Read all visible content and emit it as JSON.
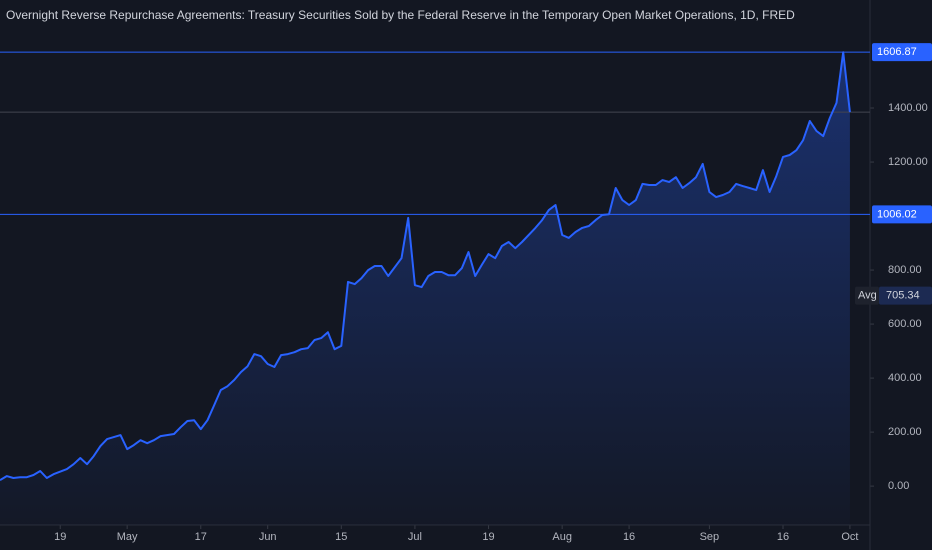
{
  "chart_data": {
    "type": "area",
    "title": "Overnight Reverse Repurchase Agreements: Treasury Securities Sold by the Federal Reserve in the Temporary Open Market Operations, 1D, FRED",
    "x": [
      0,
      1,
      2,
      3,
      4,
      5,
      6,
      7,
      8,
      10,
      11,
      12,
      13,
      14,
      15,
      16,
      18,
      19,
      20,
      21,
      22,
      23,
      24,
      26,
      27,
      28,
      29,
      30,
      31,
      32,
      33,
      34,
      35,
      36,
      37,
      38,
      39,
      40,
      41,
      42,
      43,
      44,
      45,
      46,
      47,
      48,
      49,
      50,
      51,
      52,
      53,
      54,
      55,
      56,
      57,
      58,
      60,
      61,
      62,
      63,
      64,
      65,
      66,
      67,
      68,
      69,
      70,
      71,
      72,
      73,
      74,
      75,
      76,
      77,
      78,
      80,
      81,
      82,
      83,
      84,
      85,
      86,
      87,
      88,
      89,
      90,
      91,
      92,
      93,
      94,
      95,
      96,
      97,
      98,
      99,
      100,
      101,
      102,
      103,
      104,
      105,
      106,
      107,
      108,
      109,
      110,
      111,
      112,
      113,
      114,
      115,
      116,
      117,
      118,
      119,
      120,
      121,
      122,
      123,
      124,
      125,
      126,
      127
    ],
    "values": [
      22,
      37,
      30,
      33,
      33,
      41,
      56,
      30,
      44,
      63,
      81,
      104,
      81,
      111,
      148,
      174,
      189,
      137,
      152,
      170,
      159,
      170,
      185,
      193,
      218,
      241,
      244,
      211,
      244,
      300,
      356,
      370,
      393,
      422,
      444,
      489,
      481,
      452,
      441,
      485,
      489,
      496,
      507,
      511,
      541,
      548,
      570,
      507,
      519,
      756,
      748,
      770,
      800,
      815,
      815,
      778,
      844,
      993,
      744,
      737,
      778,
      793,
      793,
      781,
      781,
      807,
      867,
      778,
      819,
      859,
      844,
      889,
      904,
      881,
      904,
      956,
      985,
      1022,
      1041,
      930,
      919,
      941,
      956,
      963,
      985,
      1004,
      1007,
      1104,
      1059,
      1041,
      1059,
      1119,
      1115,
      1115,
      1133,
      1126,
      1144,
      1104,
      1122,
      1144,
      1193,
      1089,
      1070,
      1078,
      1089,
      1119,
      1111,
      1104,
      1096,
      1170,
      1089,
      1148,
      1219,
      1226,
      1244,
      1281,
      1352,
      1315,
      1296,
      1363,
      1419,
      1606.87,
      1385
    ],
    "color": "#2962ff",
    "xlim": [
      0,
      130
    ],
    "xticks": [
      {
        "value": 9,
        "label": "19"
      },
      {
        "value": 19,
        "label": "May"
      },
      {
        "value": 30,
        "label": "17"
      },
      {
        "value": 40,
        "label": "Jun"
      },
      {
        "value": 51,
        "label": "15"
      },
      {
        "value": 62,
        "label": "Jul"
      },
      {
        "value": 73,
        "label": "19"
      },
      {
        "value": 84,
        "label": "Aug"
      },
      {
        "value": 94,
        "label": "16"
      },
      {
        "value": 106,
        "label": "Sep"
      },
      {
        "value": 117,
        "label": "16"
      },
      {
        "value": 127,
        "label": "Oct"
      }
    ],
    "ylim": [
      -144,
      1800
    ],
    "yticks": [
      {
        "value": 0,
        "label": "0.00"
      },
      {
        "value": 200,
        "label": "200.00"
      },
      {
        "value": 400,
        "label": "400.00"
      },
      {
        "value": 600,
        "label": "600.00"
      },
      {
        "value": 800,
        "label": "800.00"
      },
      {
        "value": 1200,
        "label": "1200.00"
      },
      {
        "value": 1400,
        "label": "1400.00"
      }
    ],
    "price_lines": [
      1606.87,
      1006.02
    ],
    "average": {
      "label": "Avg",
      "value": 705.34
    }
  }
}
